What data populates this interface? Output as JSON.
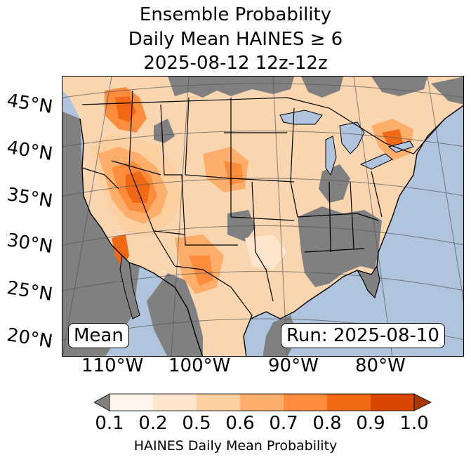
{
  "title": {
    "line1": "Ensemble Probability",
    "line2": "Daily Mean HAINES ≥ 6",
    "line3": "2025-08-12 12z-12z"
  },
  "map": {
    "latitude_labels": [
      "45°N",
      "40°N",
      "35°N",
      "30°N",
      "25°N",
      "20°N"
    ],
    "longitude_labels": [
      "110°W",
      "100°W",
      "90°W",
      "80°W"
    ],
    "stat_label": "Mean",
    "run_label": "Run: 2025-08-10",
    "colors": {
      "ocean": "#b0c4de",
      "masked_land": "#808080",
      "lakes": "#b0c4de",
      "borders": "#000000",
      "graticule": "#555555"
    }
  },
  "colorbar": {
    "label": "HAINES Daily Mean Probability",
    "ticks": [
      "0.1",
      "0.2",
      "0.5",
      "0.6",
      "0.7",
      "0.8",
      "0.9",
      "1.0"
    ],
    "under_color": "#808080",
    "bins": [
      {
        "range": "0.1-0.2",
        "color": "#fff5eb"
      },
      {
        "range": "0.2-0.5",
        "color": "#fee6ce"
      },
      {
        "range": "0.5-0.6",
        "color": "#fdd0a2"
      },
      {
        "range": "0.6-0.7",
        "color": "#fdae6b"
      },
      {
        "range": "0.7-0.8",
        "color": "#fd8d3c"
      },
      {
        "range": "0.8-0.9",
        "color": "#f16913"
      },
      {
        "range": "0.9-1.0",
        "color": "#d94801"
      }
    ],
    "over_color": "#a63603"
  }
}
